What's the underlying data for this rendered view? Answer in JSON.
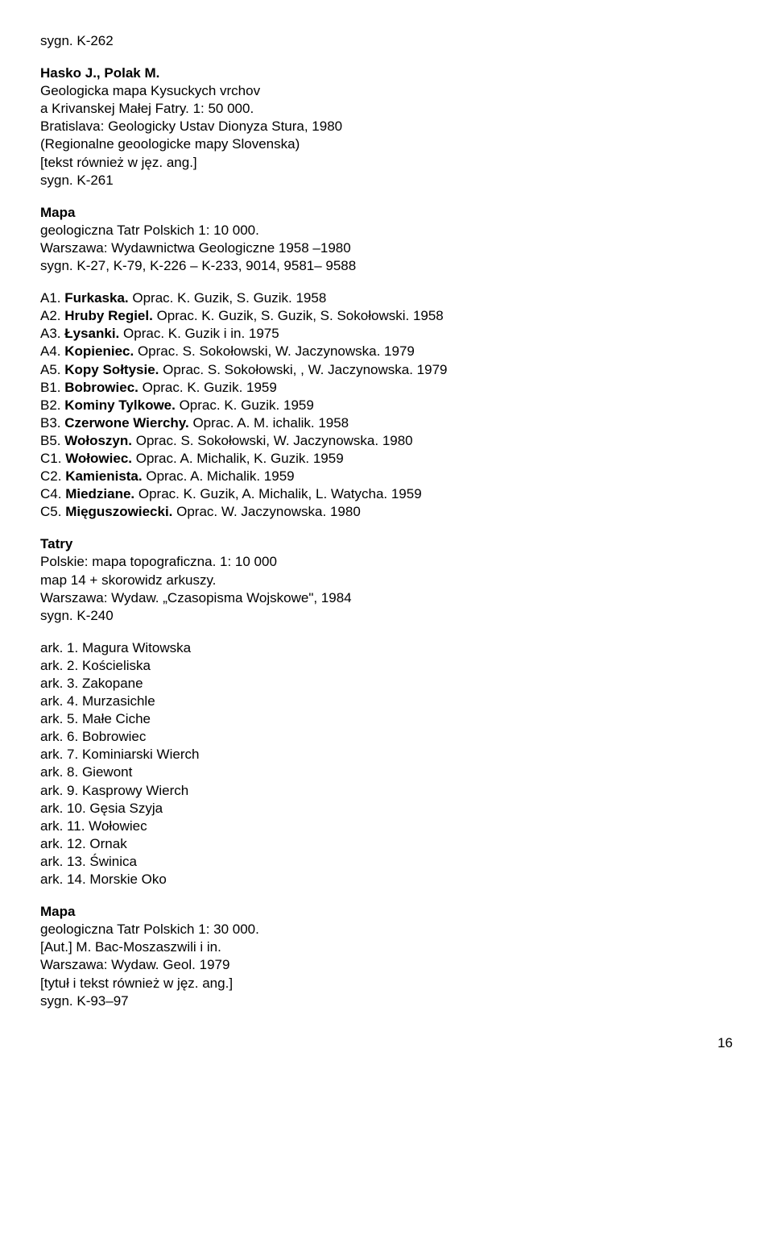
{
  "text_color": "#000000",
  "background_color": "#ffffff",
  "font_family": "Arial, Helvetica, sans-serif",
  "font_size_pt": 13,
  "page_number": "16",
  "blocks": [
    {
      "lines": [
        {
          "text": "sygn. K-262"
        }
      ]
    },
    {
      "lines": [
        {
          "text": "Hasko J., Polak M.",
          "bold": true
        },
        {
          "text": "Geologicka mapa Kysuckych vrchov"
        },
        {
          "text": "a Krivanskej Małej Fatry. 1: 50 000."
        },
        {
          "text": "Bratislava: Geologicky Ustav Dionyza Stura, 1980"
        },
        {
          "text": "(Regionalne geoologicke mapy Slovenska)"
        },
        {
          "text": "[tekst również w jęz. ang.]"
        },
        {
          "text": "sygn. K-261"
        }
      ]
    },
    {
      "lines": [
        {
          "text": "Mapa",
          "bold": true
        },
        {
          "text": "geologiczna Tatr Polskich 1: 10 000."
        },
        {
          "text": "Warszawa: Wydawnictwa Geologiczne 1958 –1980"
        },
        {
          "text": "sygn. K-27, K-79, K-226 – K-233,  9014, 9581– 9588"
        }
      ]
    },
    {
      "lines": [
        {
          "pre": "A1. ",
          "bold_span": "Furkaska.",
          "post": " Oprac. K. Guzik, S. Guzik. 1958"
        },
        {
          "pre": "A2. ",
          "bold_span": "Hruby Regiel.",
          "post": " Oprac. K. Guzik, S. Guzik, S. Sokołowski. 1958"
        },
        {
          "pre": "A3. ",
          "bold_span": "Łysanki.",
          "post": " Oprac. K. Guzik i in. 1975"
        },
        {
          "pre": "A4. ",
          "bold_span": "Kopieniec.",
          "post": " Oprac. S. Sokołowski, W. Jaczynowska. 1979"
        },
        {
          "pre": "A5. ",
          "bold_span": "Kopy Sołtysie.",
          "post": " Oprac. S. Sokołowski, , W. Jaczynowska. 1979"
        },
        {
          "pre": "B1. ",
          "bold_span": "Bobrowiec.",
          "post": " Oprac. K. Guzik. 1959"
        },
        {
          "pre": "B2. ",
          "bold_span": "Kominy Tylkowe.",
          "post": " Oprac. K. Guzik. 1959"
        },
        {
          "pre": "B3. ",
          "bold_span": "Czerwone Wierchy.",
          "post": " Oprac. A. M. ichalik. 1958"
        },
        {
          "pre": "B5. ",
          "bold_span": "Wołoszyn.",
          "post": " Oprac. S. Sokołowski, W. Jaczynowska. 1980"
        },
        {
          "pre": "C1. ",
          "bold_span": "Wołowiec.",
          "post": " Oprac. A. Michalik, K. Guzik. 1959"
        },
        {
          "pre": "C2. ",
          "bold_span": "Kamienista.",
          "post": " Oprac. A. Michalik. 1959"
        },
        {
          "pre": "C4. ",
          "bold_span": "Miedziane.",
          "post": " Oprac. K. Guzik, A. Michalik, L. Watycha. 1959"
        },
        {
          "pre": "C5. ",
          "bold_span": "Mięguszowiecki.",
          "post": " Oprac. W. Jaczynowska. 1980"
        }
      ]
    },
    {
      "lines": [
        {
          "text": "Tatry",
          "bold": true
        },
        {
          "text": "Polskie: mapa topograficzna. 1: 10 000"
        },
        {
          "text": "map 14 + skorowidz arkuszy."
        },
        {
          "text": "Warszawa: Wydaw. „Czasopisma Wojskowe\", 1984"
        },
        {
          "text": "sygn. K-240"
        }
      ]
    },
    {
      "lines": [
        {
          "text": "ark. 1. Magura Witowska"
        },
        {
          "text": "ark. 2. Kościeliska"
        },
        {
          "text": "ark. 3. Zakopane"
        },
        {
          "text": "ark. 4. Murzasichle"
        },
        {
          "text": "ark. 5. Małe Ciche"
        },
        {
          "text": "ark. 6. Bobrowiec"
        },
        {
          "text": "ark. 7. Kominiarski Wierch"
        },
        {
          "text": "ark. 8. Giewont"
        },
        {
          "text": "ark. 9. Kasprowy Wierch"
        },
        {
          "text": "ark. 10. Gęsia Szyja"
        },
        {
          "text": "ark. 11. Wołowiec"
        },
        {
          "text": "ark. 12. Ornak"
        },
        {
          "text": "ark. 13. Świnica"
        },
        {
          "text": "ark. 14. Morskie Oko"
        }
      ]
    },
    {
      "lines": [
        {
          "text": "Mapa",
          "bold": true
        },
        {
          "text": "geologiczna Tatr Polskich 1: 30 000."
        },
        {
          "text": "[Aut.] M. Bac-Moszaszwili i in."
        },
        {
          "text": "Warszawa: Wydaw. Geol. 1979"
        },
        {
          "text": "[tytuł i tekst również w jęz. ang.]"
        },
        {
          "text": "sygn. K-93–97"
        }
      ]
    }
  ]
}
